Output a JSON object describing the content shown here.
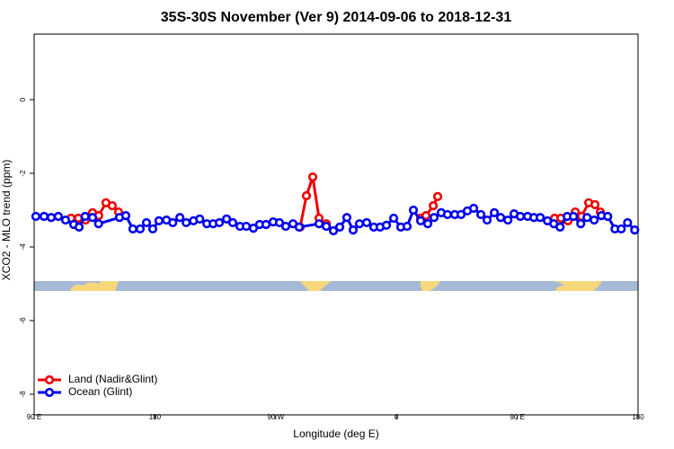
{
  "chart_data": {
    "type": "line",
    "title": "35S-30S November (Ver 9)   2014-09-06 to 2018-12-31",
    "x_label": "Longitude (deg E)",
    "y_label": "XCO2 - MLO trend (ppm)",
    "xlim": [
      90,
      540
    ],
    "ylim": [
      -8.56,
      1.78
    ],
    "xticks": [
      {
        "value": 90,
        "label": "90 E"
      },
      180,
      {
        "value": 270,
        "label": "90 W"
      },
      {
        "value": 360,
        "label": "0"
      },
      {
        "value": 450,
        "label": "90 E"
      },
      {
        "value": 540,
        "label": "180"
      }
    ],
    "yticks": [
      0,
      -2,
      -4,
      -6,
      -8
    ],
    "legend": "bottom-left",
    "series": [
      {
        "name": "Land (Nadir&Glint)",
        "color": "#ee0000",
        "x": [
          117.5,
          122.9,
          128.2,
          133.5,
          138.1,
          143.5,
          148.2,
          152.9,
          null,
          288.2,
          292.9,
          297.6,
          302.3,
          307.7,
          null,
          378,
          382,
          387.4,
          390.7,
          null,
          477.8,
          482.5,
          487.8,
          493.2,
          497.9,
          503.2,
          507.9,
          511.9
        ],
        "values": [
          -3.22,
          -3.22,
          -3.27,
          -3.07,
          -3.15,
          -2.8,
          -2.88,
          -3.05,
          null,
          -3.46,
          -2.61,
          -2.1,
          -3.22,
          -3.37,
          null,
          -3.22,
          -3.15,
          -2.88,
          -2.63,
          null,
          -3.22,
          -3.22,
          -3.29,
          -3.05,
          -3.17,
          -2.8,
          -2.85,
          -3.05
        ]
      },
      {
        "name": "Ocean (Glint)",
        "color": "#0000ee",
        "x": [
          91.3,
          97.4,
          102.7,
          108,
          113.4,
          119.5,
          123.5,
          128,
          133.5,
          138,
          153.6,
          158.3,
          163.6,
          169,
          173.7,
          178.4,
          183,
          188.6,
          193.3,
          198.6,
          203.3,
          208.7,
          213.4,
          218.7,
          223.4,
          228,
          233.4,
          238,
          243.4,
          248.1,
          253.4,
          258,
          262.8,
          268.1,
          272.8,
          277.5,
          282.9,
          287.5,
          302.3,
          307.7,
          313,
          317.7,
          323,
          327.7,
          332.4,
          337.8,
          343.1,
          347.8,
          352.5,
          357.9,
          363.2,
          367.9,
          372.6,
          378,
          383.3,
          388,
          393.3,
          398,
          403.4,
          408.1,
          412.8,
          417.5,
          422.9,
          427.5,
          432.9,
          437.6,
          443,
          447.6,
          452.3,
          457.7,
          462.4,
          467.1,
          472.5,
          477.2,
          481.9,
          487.2,
          491.9,
          497.3,
          502,
          507.3,
          512.7,
          517.4,
          522.8,
          527.5,
          532.2,
          537.5
        ],
        "values": [
          -3.17,
          -3.17,
          -3.2,
          -3.17,
          -3.27,
          -3.39,
          -3.46,
          -3.17,
          -3.2,
          -3.37,
          -3.2,
          -3.15,
          -3.51,
          -3.51,
          -3.34,
          -3.51,
          -3.29,
          -3.27,
          -3.34,
          -3.2,
          -3.34,
          -3.29,
          -3.24,
          -3.37,
          -3.37,
          -3.34,
          -3.24,
          -3.34,
          -3.44,
          -3.44,
          -3.49,
          -3.39,
          -3.39,
          -3.32,
          -3.34,
          -3.44,
          -3.37,
          -3.46,
          -3.37,
          -3.44,
          -3.56,
          -3.46,
          -3.2,
          -3.54,
          -3.37,
          -3.34,
          -3.46,
          -3.46,
          -3.41,
          -3.22,
          -3.46,
          -3.44,
          -3.0,
          -3.29,
          -3.37,
          -3.2,
          -3.07,
          -3.12,
          -3.12,
          -3.12,
          -3.02,
          -2.95,
          -3.12,
          -3.27,
          -3.07,
          -3.2,
          -3.27,
          -3.1,
          -3.17,
          -3.17,
          -3.2,
          -3.2,
          -3.29,
          -3.37,
          -3.46,
          -3.17,
          -3.17,
          -3.37,
          -3.2,
          -3.27,
          -3.15,
          -3.17,
          -3.51,
          -3.51,
          -3.34,
          -3.54
        ]
      }
    ]
  }
}
